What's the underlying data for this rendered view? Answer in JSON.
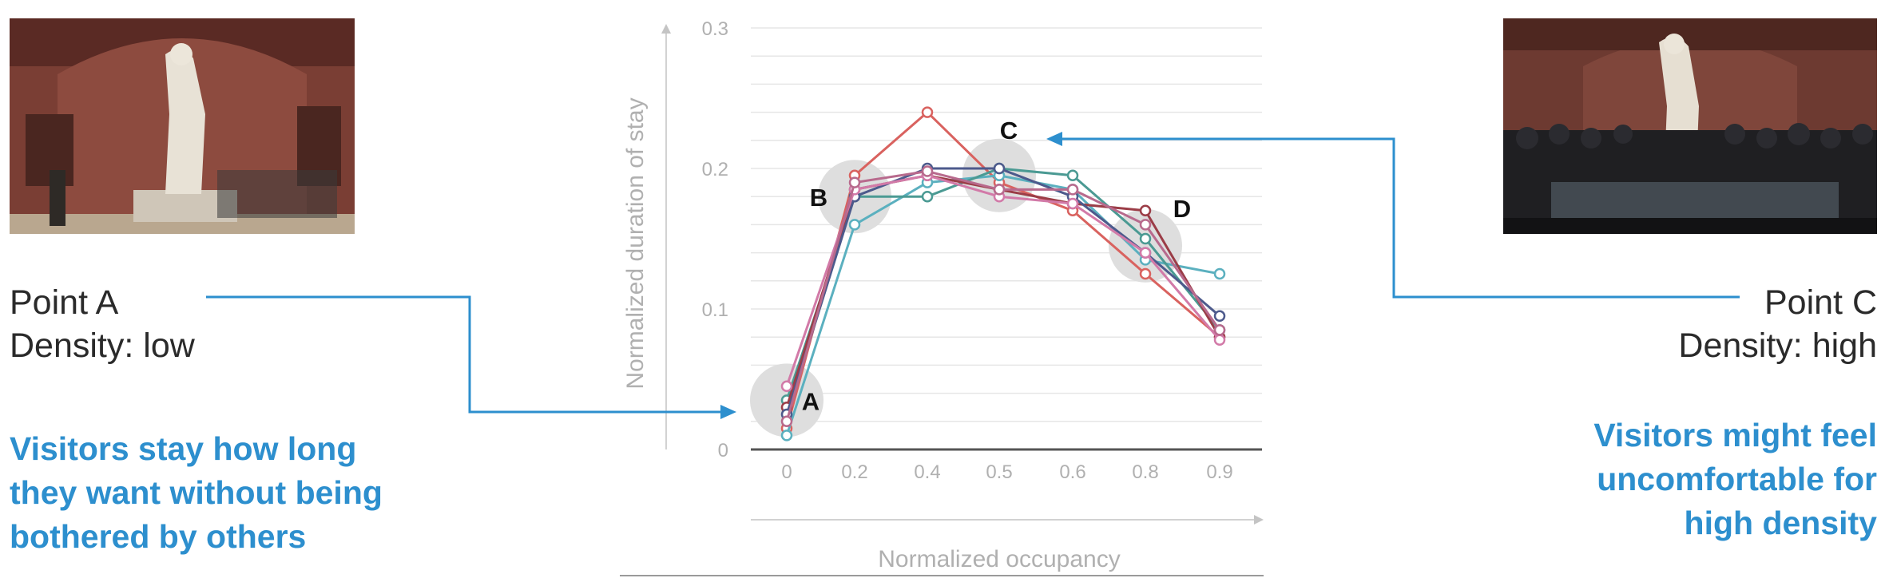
{
  "left_panel": {
    "photo": "museum-gallery-low-density",
    "title": "Point A",
    "density": "Density: low",
    "note_lines": [
      "Visitors stay how long",
      "they want without being",
      "bothered by others"
    ]
  },
  "right_panel": {
    "photo": "museum-gallery-high-density",
    "title": "Point C",
    "density": "Density: high",
    "note_lines": [
      "Visitors might feel",
      "uncomfortable for",
      "high density"
    ]
  },
  "colors": {
    "accent": "#2d8fce",
    "highlight": "#dedede",
    "axis": "#555555",
    "grid": "#e6e6e6"
  },
  "chart_data": {
    "type": "line",
    "xlabel": "Normalized occupancy",
    "ylabel": "Normalized duration of stay",
    "x": [
      0,
      0.2,
      0.4,
      0.5,
      0.6,
      0.8,
      0.9
    ],
    "x_tick_labels": [
      "0",
      "0.2",
      "0.4",
      "0.5",
      "0.6",
      "0.8",
      "0.9"
    ],
    "y_ticks": [
      0,
      0.1,
      0.2,
      0.3
    ],
    "y_tick_labels": [
      "0",
      "0.1",
      "0.2",
      "0.3"
    ],
    "ylim": [
      0,
      0.3
    ],
    "grid": true,
    "series": [
      {
        "color": "#d9625f",
        "values": [
          0.015,
          0.195,
          0.24,
          0.19,
          0.17,
          0.125,
          0.08
        ]
      },
      {
        "color": "#5bb0bf",
        "values": [
          0.01,
          0.16,
          0.19,
          0.195,
          0.185,
          0.135,
          0.125
        ]
      },
      {
        "color": "#4b9a93",
        "values": [
          0.035,
          0.18,
          0.18,
          0.2,
          0.195,
          0.15,
          0.085
        ]
      },
      {
        "color": "#9b3d47",
        "values": [
          0.03,
          0.185,
          0.195,
          0.185,
          0.175,
          0.17,
          0.08
        ]
      },
      {
        "color": "#4d5a8c",
        "values": [
          0.025,
          0.18,
          0.2,
          0.2,
          0.18,
          0.14,
          0.095
        ]
      },
      {
        "color": "#d27aa8",
        "values": [
          0.045,
          0.185,
          0.195,
          0.18,
          0.175,
          0.14,
          0.078
        ]
      },
      {
        "color": "#b86a8d",
        "values": [
          0.02,
          0.19,
          0.198,
          0.185,
          0.185,
          0.16,
          0.085
        ]
      }
    ],
    "highlights": [
      {
        "label": "A",
        "x": 0,
        "y": 0.035
      },
      {
        "label": "B",
        "x": 0.2,
        "y": 0.18
      },
      {
        "label": "C",
        "x": 0.5,
        "y": 0.195
      },
      {
        "label": "D",
        "x": 0.8,
        "y": 0.145
      }
    ]
  }
}
